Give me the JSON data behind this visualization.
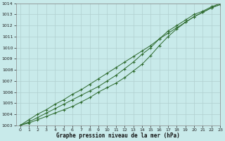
{
  "xlabel": "Graphe pression niveau de la mer (hPa)",
  "x": [
    0,
    1,
    2,
    3,
    4,
    5,
    6,
    7,
    8,
    9,
    10,
    11,
    12,
    13,
    14,
    15,
    16,
    17,
    18,
    19,
    20,
    21,
    22,
    23
  ],
  "line1": [
    1003.0,
    1003.2,
    1003.5,
    1003.8,
    1004.1,
    1004.4,
    1004.7,
    1005.1,
    1005.5,
    1006.0,
    1006.4,
    1006.8,
    1007.3,
    1007.9,
    1008.5,
    1009.3,
    1010.2,
    1011.0,
    1011.7,
    1012.3,
    1012.8,
    1013.2,
    1013.6,
    1013.9
  ],
  "line2": [
    1003.0,
    1003.3,
    1003.7,
    1004.1,
    1004.5,
    1004.9,
    1005.3,
    1005.7,
    1006.1,
    1006.5,
    1007.0,
    1007.5,
    1008.1,
    1008.7,
    1009.4,
    1010.0,
    1010.8,
    1011.5,
    1012.0,
    1012.5,
    1013.0,
    1013.3,
    1013.7,
    1014.0
  ],
  "line3": [
    1003.0,
    1003.5,
    1004.0,
    1004.4,
    1004.9,
    1005.3,
    1005.8,
    1006.2,
    1006.7,
    1007.2,
    1007.7,
    1008.2,
    1008.7,
    1009.2,
    1009.7,
    1010.2,
    1010.8,
    1011.3,
    1011.8,
    1012.3,
    1012.8,
    1013.2,
    1013.6,
    1013.9
  ],
  "line_color": "#2d6a2d",
  "bg_color": "#c8eaea",
  "grid_color": "#b0d0d0",
  "ylim": [
    1003,
    1014
  ],
  "xlim": [
    -0.5,
    23
  ],
  "yticks": [
    1003,
    1004,
    1005,
    1006,
    1007,
    1008,
    1009,
    1010,
    1011,
    1012,
    1013,
    1014
  ],
  "xticks": [
    0,
    1,
    2,
    3,
    4,
    5,
    6,
    7,
    8,
    9,
    10,
    11,
    12,
    13,
    14,
    15,
    16,
    17,
    18,
    19,
    20,
    21,
    22,
    23
  ]
}
